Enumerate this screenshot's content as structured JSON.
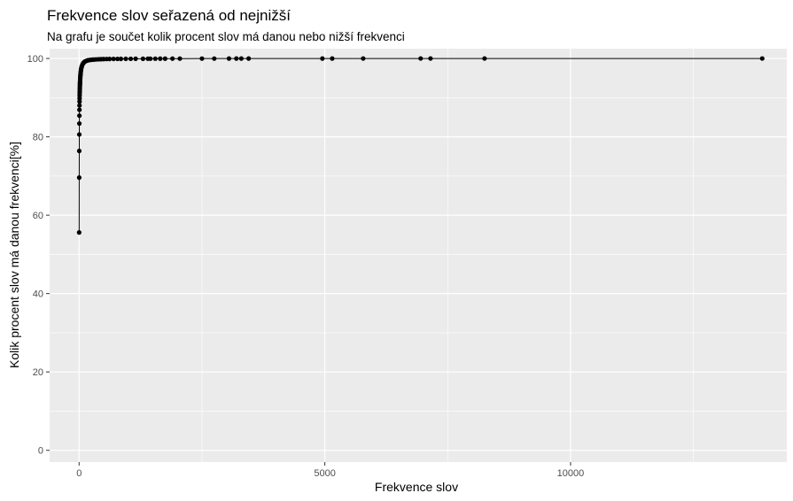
{
  "chart_data": {
    "type": "line",
    "title": "Frekvence slov seřazená od nejnižší",
    "subtitle": "Na grafu je součet kolik procent slov má  danou nebo nižší frekvenci",
    "xlabel": "Frekvence slov",
    "ylabel": "Kolik procent slov má danou frekvenci[%]",
    "xlim": [
      -600,
      14400
    ],
    "ylim": [
      -3,
      102.5
    ],
    "x_ticks": [
      0,
      5000,
      10000
    ],
    "x_tick_labels": [
      "0",
      "5000",
      "10000"
    ],
    "y_ticks": [
      0,
      20,
      40,
      60,
      80,
      100
    ],
    "y_tick_labels": [
      "0",
      "20",
      "40",
      "60",
      "80",
      "100"
    ],
    "grid": true,
    "markers": true,
    "colors": {
      "panel": "#ebebeb",
      "grid": "#ffffff",
      "series": "#000000"
    },
    "series": [
      {
        "x": [
          1,
          2,
          3,
          4,
          5,
          6,
          7,
          8,
          9,
          10,
          11,
          12,
          13,
          14,
          15,
          16,
          17,
          18,
          19,
          20,
          22,
          24,
          26,
          28,
          30,
          33,
          36,
          40,
          45,
          50,
          55,
          60,
          70,
          80,
          90,
          100,
          115,
          130,
          150,
          170,
          190,
          210,
          240,
          270,
          300,
          330,
          370,
          410,
          450,
          500,
          560,
          620,
          700,
          780,
          850,
          950,
          1050,
          1150,
          1300,
          1400,
          1450,
          1550,
          1650,
          1750,
          1900,
          2050,
          2500,
          2750,
          3050,
          3200,
          3300,
          3450,
          4950,
          5150,
          5780,
          6950,
          7150,
          8250,
          13900
        ],
        "y": [
          55.6,
          69.6,
          76.4,
          80.6,
          83.4,
          85.4,
          86.9,
          88.0,
          89.0,
          89.8,
          90.5,
          91.1,
          91.6,
          92.1,
          92.5,
          92.9,
          93.3,
          93.6,
          93.9,
          94.2,
          94.7,
          95.1,
          95.5,
          95.8,
          96.1,
          96.5,
          96.8,
          97.2,
          97.5,
          97.8,
          98.0,
          98.2,
          98.5,
          98.7,
          98.9,
          99.0,
          99.2,
          99.3,
          99.4,
          99.5,
          99.55,
          99.6,
          99.65,
          99.7,
          99.72,
          99.75,
          99.78,
          99.8,
          99.82,
          99.84,
          99.86,
          99.87,
          99.88,
          99.89,
          99.9,
          99.91,
          99.92,
          99.93,
          99.935,
          99.94,
          99.945,
          99.95,
          99.955,
          99.96,
          99.965,
          99.97,
          99.974,
          99.978,
          99.981,
          99.984,
          99.986,
          99.988,
          99.99,
          99.992,
          99.994,
          99.996,
          99.997,
          99.998,
          100.0
        ]
      }
    ]
  }
}
